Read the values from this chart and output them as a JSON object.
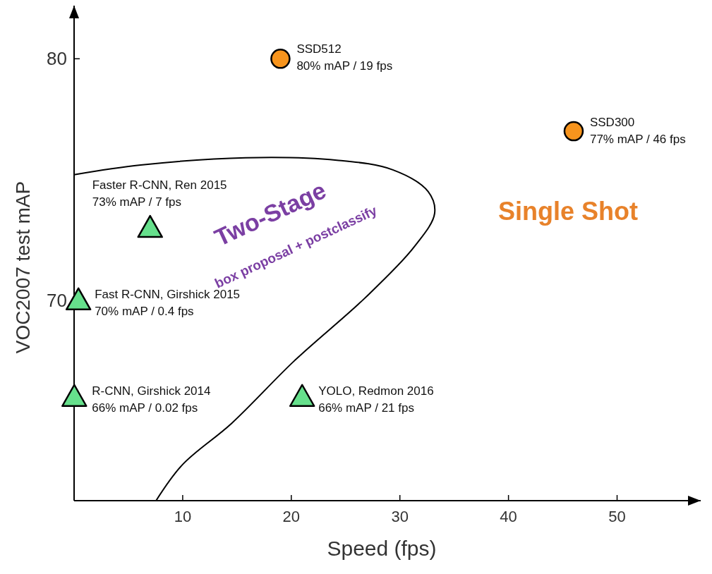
{
  "chart_data": {
    "type": "scatter",
    "xlabel": "Speed (fps)",
    "ylabel": "VOC2007 test mAP",
    "xlim": [
      0,
      57.7
    ],
    "ylim": [
      61.7,
      82.2
    ],
    "xticks": [
      10,
      20,
      30,
      40,
      50
    ],
    "yticks": [
      70,
      80
    ],
    "grid": false,
    "series": [
      {
        "color": "#f7941d",
        "marker": "circle",
        "x": [
          19,
          46
        ],
        "values": [
          80,
          77
        ]
      },
      {
        "color": "#66e08c",
        "marker": "triangle",
        "x": [
          7,
          0.4,
          0.02,
          21
        ],
        "values": [
          73,
          70,
          66,
          66
        ]
      },
      {
        "type": "line",
        "color": "#000000",
        "x": [
          0,
          6.13,
          15.8,
          24.2,
          29.35,
          32.6,
          33.2,
          31.3,
          26.8,
          20.3,
          14.5,
          10,
          7.55
        ],
        "values": [
          75.2,
          75.6,
          75.9,
          75.8,
          75.4,
          74.5,
          73.6,
          72.2,
          70.1,
          67.5,
          64.9,
          63.2,
          61.7
        ]
      }
    ],
    "annotations": [
      {
        "text": "SSD512\n80% mAP / 19 fps",
        "x": 19,
        "y": 80
      },
      {
        "text": "SSD300\n77% mAP / 46 fps",
        "x": 46,
        "y": 77
      },
      {
        "text": "Faster R-CNN, Ren 2015\n73% mAP / 7 fps",
        "x": 7,
        "y": 73
      },
      {
        "text": "Fast R-CNN, Girshick 2015\n70% mAP / 0.4 fps",
        "x": 0.4,
        "y": 70
      },
      {
        "text": "R-CNN, Girshick 2014\n66% mAP / 0.02 fps",
        "x": 0.02,
        "y": 66
      },
      {
        "text": "YOLO, Redmon 2016\n66% mAP / 21 fps",
        "x": 21,
        "y": 66
      },
      "Two-Stage",
      "box proposal + postclassify",
      "Single Shot"
    ]
  }
}
